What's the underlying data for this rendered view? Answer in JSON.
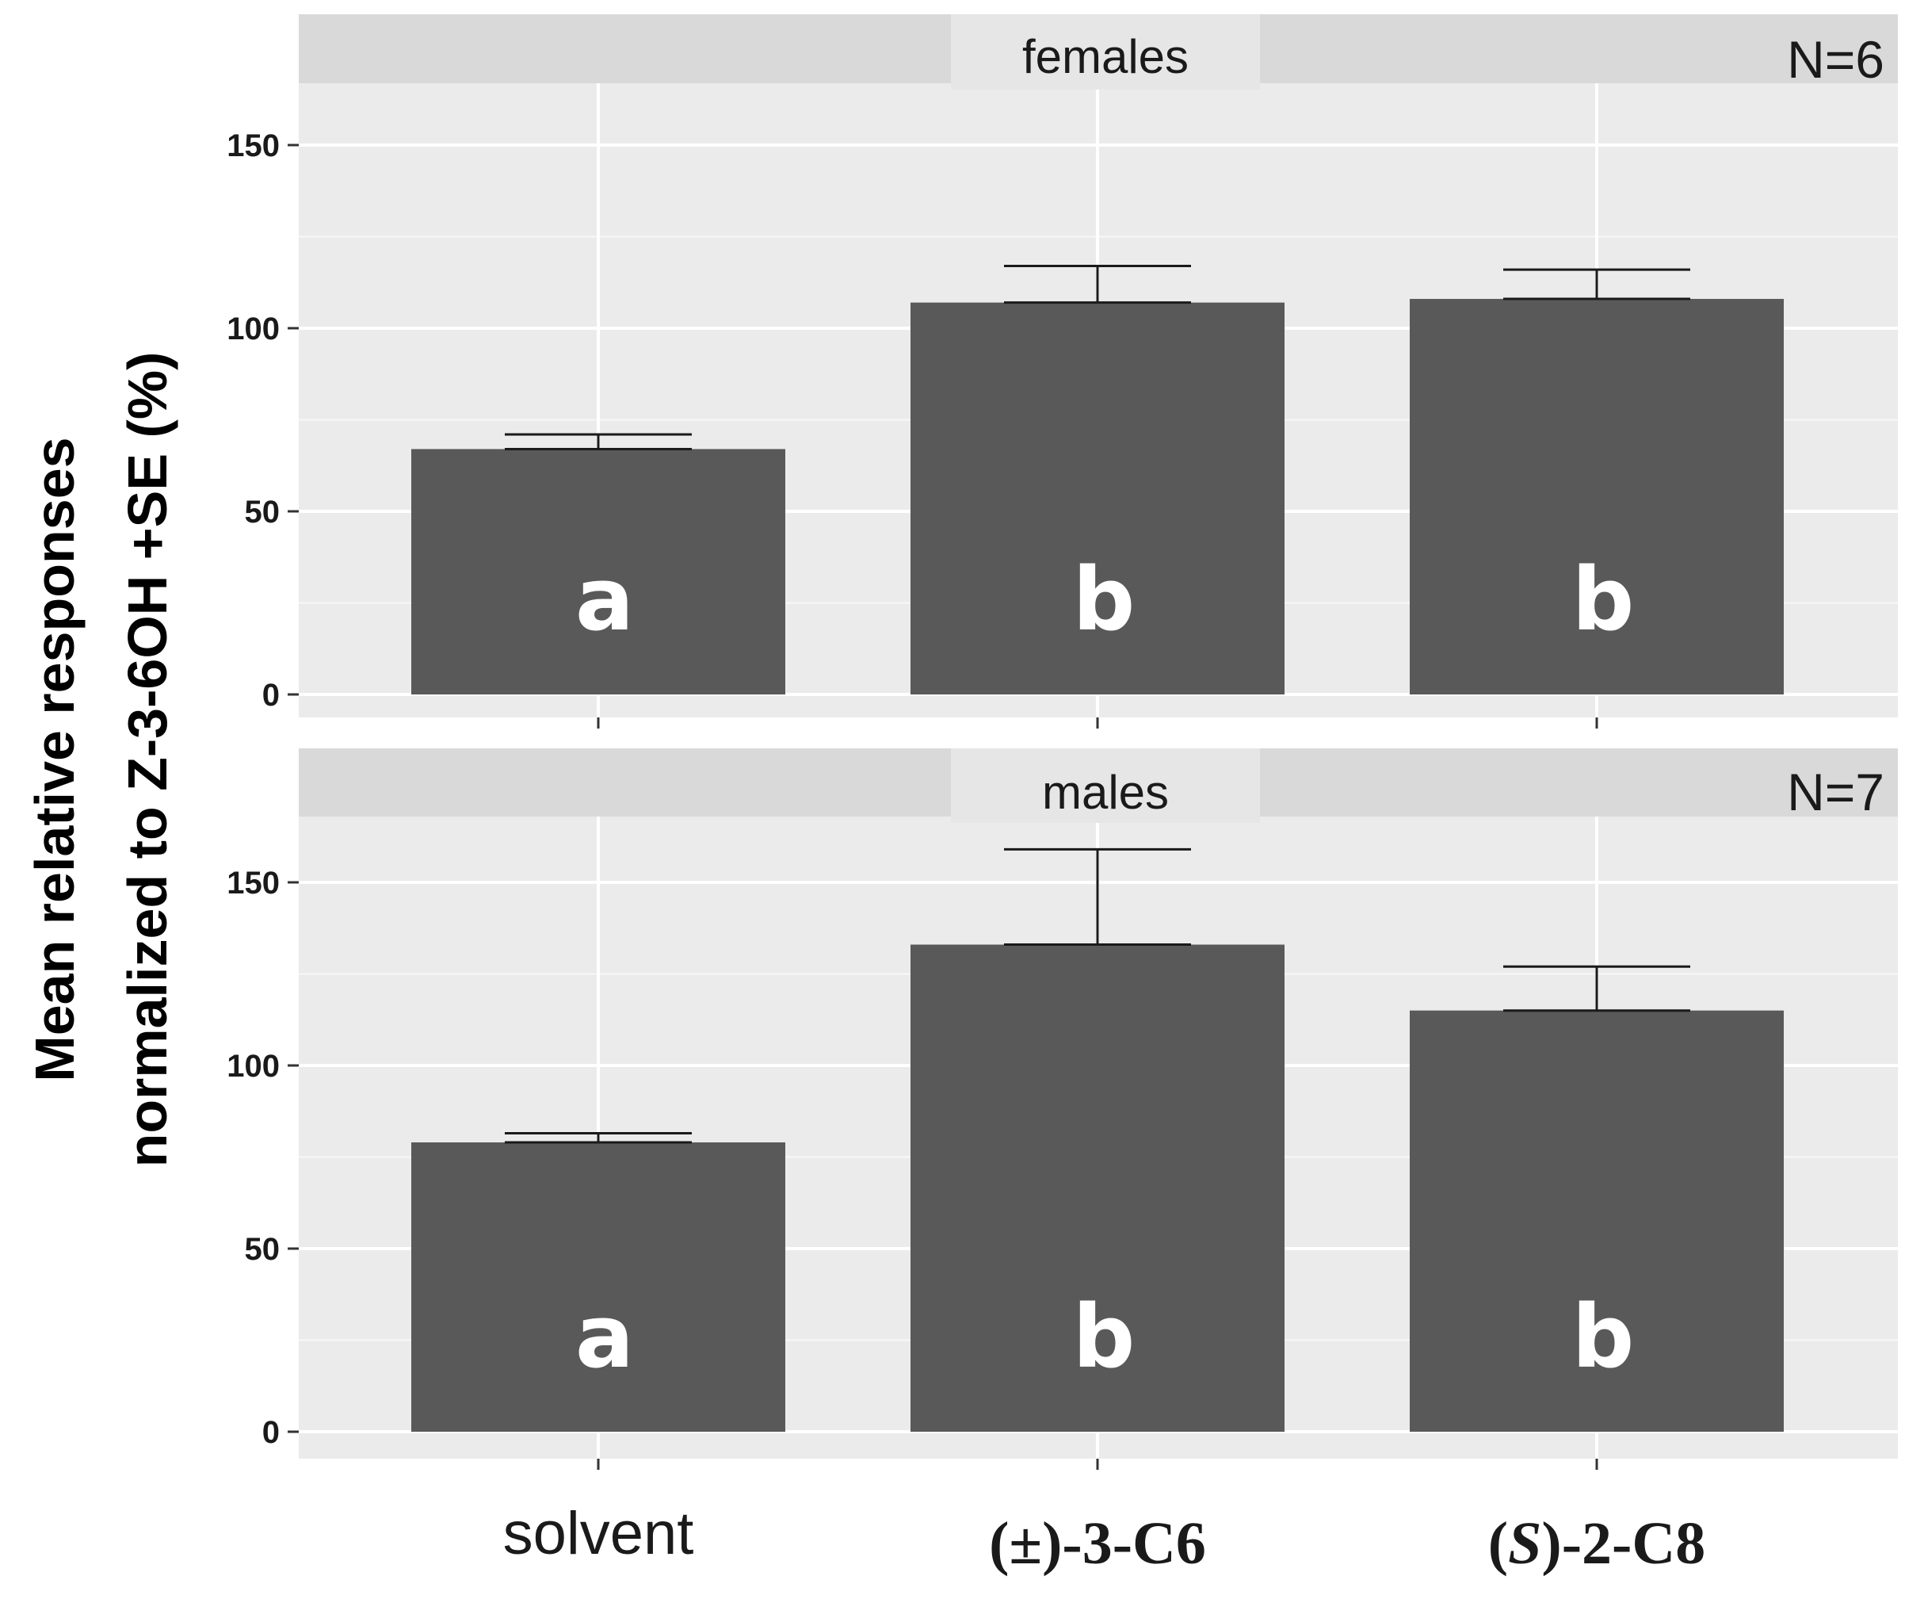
{
  "chart_data": [
    {
      "type": "bar",
      "panel": "females",
      "n_label": "N=6",
      "categories": [
        "solvent",
        "(±)-3-C6",
        "(S)-2-C8"
      ],
      "values": [
        67,
        107,
        108
      ],
      "errors": [
        4,
        10,
        8
      ],
      "letters": [
        "a",
        "b",
        "b"
      ],
      "ylim": [
        0,
        170
      ],
      "yticks": [
        0,
        50,
        100,
        150
      ]
    },
    {
      "type": "bar",
      "panel": "males",
      "n_label": "N=7",
      "categories": [
        "solvent",
        "(±)-3-C6",
        "(S)-2-C8"
      ],
      "values": [
        79,
        133,
        115
      ],
      "errors": [
        2.5,
        26,
        12
      ],
      "letters": [
        "a",
        "b",
        "b"
      ],
      "ylim": [
        0,
        170
      ],
      "yticks": [
        0,
        50,
        100,
        150
      ]
    }
  ],
  "axes": {
    "ylabel_line1": "Mean relative responses",
    "ylabel_line2": "normalized to Z-3-6OH +SE (%)",
    "x_labels": {
      "solvent": "solvent",
      "c6": "(±)-3-C6",
      "c8_prefix": "(",
      "c8_italic": "S",
      "c8_suffix": ")-2-C8"
    }
  },
  "colors": {
    "bar": "#595959",
    "panel_background": "#ebebeb",
    "strip_background": "#d9d9d9",
    "letter": "#ffffff"
  }
}
